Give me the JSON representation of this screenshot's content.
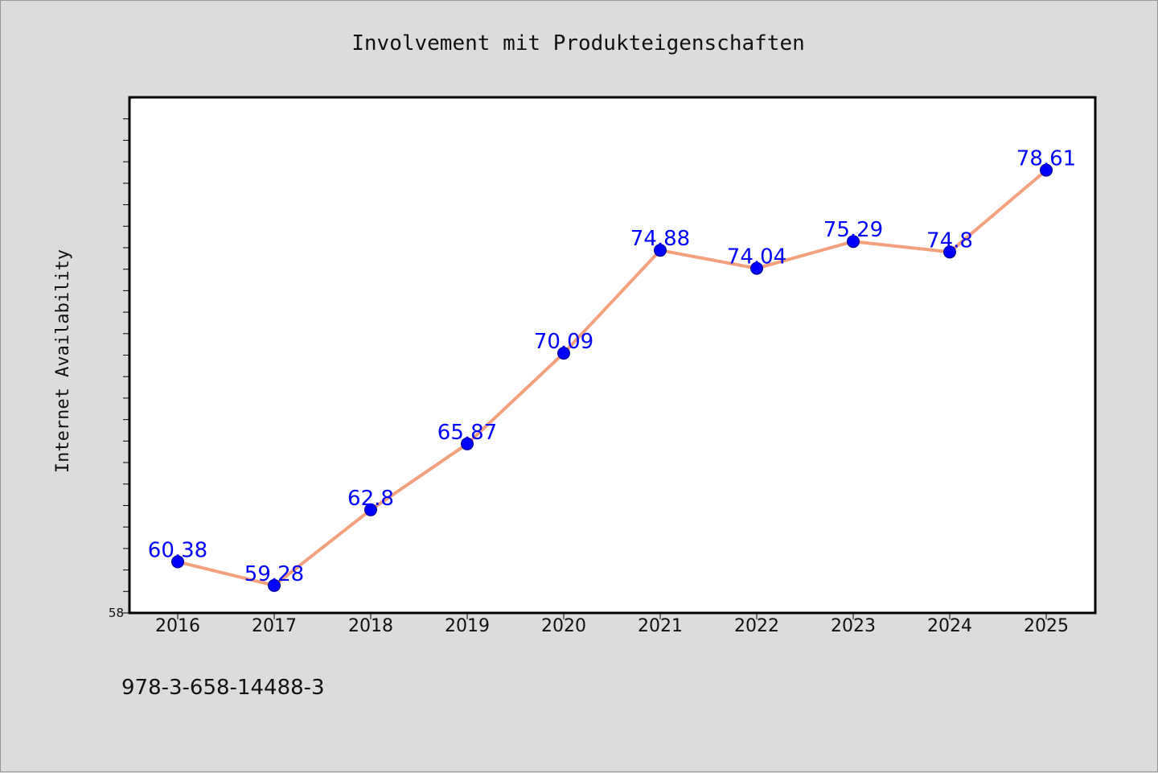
{
  "chart_data": {
    "type": "line",
    "title": "Involvement mit Produkteigenschaften",
    "xlabel": "",
    "ylabel": "Internet Availability",
    "categories": [
      "2016",
      "2017",
      "2018",
      "2019",
      "2020",
      "2021",
      "2022",
      "2023",
      "2024",
      "2025"
    ],
    "series": [
      {
        "values": [
          60.38,
          59.28,
          62.8,
          65.87,
          70.09,
          74.88,
          74.04,
          75.29,
          74.8,
          78.61
        ],
        "labels": [
          "60.38",
          "59.28",
          "62.8",
          "65.87",
          "70.09",
          "74.88",
          "74.04",
          "75.29",
          "74.8",
          "78.61"
        ]
      }
    ],
    "ylim": [
      58,
      82
    ],
    "y_min_label": "58",
    "grid": false,
    "legend": "none",
    "colors": {
      "line": "#f4a07c",
      "marker": "#0000ff",
      "label": "#0000ff",
      "plot_bg": "#ffffff",
      "page_bg": "#dcdcdc"
    }
  },
  "footer": {
    "isbn": "978-3-658-14488-3"
  }
}
